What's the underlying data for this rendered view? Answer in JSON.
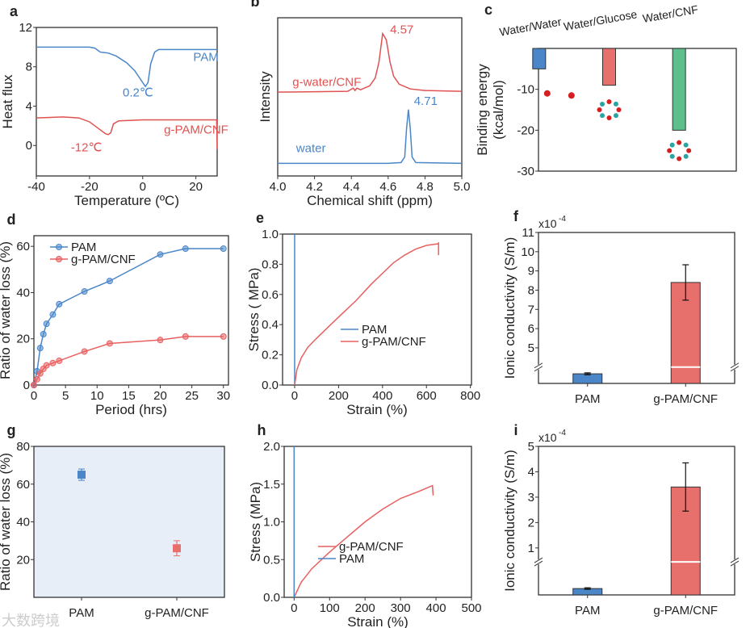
{
  "watermark": "大数跨境",
  "chart_data": [
    {
      "id": "a",
      "letter": "a",
      "type": "line",
      "xlim": [
        -40,
        28
      ],
      "ylim": [
        -3.1,
        12
      ],
      "xticks": [
        "-40",
        "-20",
        "0",
        "20"
      ],
      "yticks": [
        "0",
        "4",
        "8",
        "12"
      ],
      "xlabel": "Temperature (ºC)",
      "ylabel": "Heat flux",
      "series": [
        {
          "name": "PAM",
          "color": "#4a86c8",
          "points": [
            [
              -40,
              10
            ],
            [
              -20,
              10
            ],
            [
              -18,
              9.9
            ],
            [
              -16,
              9.5
            ],
            [
              -13,
              9.4
            ],
            [
              -10,
              9.1
            ],
            [
              -6,
              8.4
            ],
            [
              -3,
              7.6
            ],
            [
              -1,
              6.8
            ],
            [
              1,
              6
            ],
            [
              2,
              6.4
            ],
            [
              3,
              8.3
            ],
            [
              4.5,
              9.5
            ],
            [
              6,
              9.75
            ],
            [
              28,
              9.75
            ]
          ]
        },
        {
          "name": "g-PAM/CNF",
          "color": "#e05252",
          "points": [
            [
              -40,
              2.8
            ],
            [
              -30,
              2.9
            ],
            [
              -24,
              2.8
            ],
            [
              -20,
              2.4
            ],
            [
              -17,
              1.8
            ],
            [
              -14,
              1.2
            ],
            [
              -13,
              1.1
            ],
            [
              -12,
              1.3
            ],
            [
              -11,
              2.2
            ],
            [
              -9,
              2.5
            ],
            [
              0,
              2.6
            ],
            [
              27.8,
              2.6
            ],
            [
              28,
              -0.4
            ]
          ]
        }
      ],
      "annotations": [
        {
          "text": "PAM",
          "x": 19,
          "y": 8.6,
          "color": "#4a86c8"
        },
        {
          "text": "0.2℃",
          "x": -7.5,
          "y": 5,
          "color": "#4a86c8"
        },
        {
          "text": "g-PAM/CNF",
          "x": 8,
          "y": 1.2,
          "color": "#e05252"
        },
        {
          "text": "-12℃",
          "x": -27,
          "y": -0.6,
          "color": "#e05252"
        }
      ]
    },
    {
      "id": "b",
      "letter": "b",
      "type": "line",
      "xlim": [
        4.0,
        5.0
      ],
      "ylim": [
        0,
        1
      ],
      "xticks": [
        "4.0",
        "4.2",
        "4.4",
        "4.6",
        "4.8",
        "5.0"
      ],
      "yticks": [],
      "xlabel": "Chemical shift (ppm)",
      "ylabel": "Intensity",
      "series": [
        {
          "name": "g-water/CNF",
          "color": "#e05252",
          "points": [
            [
              4.0,
              0.53
            ],
            [
              4.38,
              0.535
            ],
            [
              4.41,
              0.555
            ],
            [
              4.42,
              0.54
            ],
            [
              4.43,
              0.555
            ],
            [
              4.45,
              0.545
            ],
            [
              4.5,
              0.57
            ],
            [
              4.53,
              0.62
            ],
            [
              4.55,
              0.72
            ],
            [
              4.57,
              0.9
            ],
            [
              4.59,
              0.86
            ],
            [
              4.61,
              0.72
            ],
            [
              4.63,
              0.63
            ],
            [
              4.66,
              0.58
            ],
            [
              4.72,
              0.55
            ],
            [
              4.8,
              0.54
            ],
            [
              5.0,
              0.535
            ]
          ]
        },
        {
          "name": "water",
          "color": "#4a86c8",
          "points": [
            [
              4.0,
              0.08
            ],
            [
              4.6,
              0.08
            ],
            [
              4.67,
              0.085
            ],
            [
              4.69,
              0.12
            ],
            [
              4.7,
              0.3
            ],
            [
              4.71,
              0.42
            ],
            [
              4.72,
              0.3
            ],
            [
              4.73,
              0.12
            ],
            [
              4.75,
              0.085
            ],
            [
              5.0,
              0.08
            ]
          ]
        }
      ],
      "annotations": [
        {
          "text": "4.57",
          "x": 4.61,
          "y": 0.9,
          "color": "#e05252"
        },
        {
          "text": "g-water/CNF",
          "x": 4.08,
          "y": 0.57,
          "color": "#e05252"
        },
        {
          "text": "4.71",
          "x": 4.74,
          "y": 0.45,
          "color": "#4a86c8"
        },
        {
          "text": "water",
          "x": 4.1,
          "y": 0.15,
          "color": "#4a86c8"
        }
      ]
    },
    {
      "id": "c",
      "letter": "c",
      "type": "bar",
      "xlim": [
        0,
        3
      ],
      "ylim": [
        -30,
        0
      ],
      "xticks": [],
      "yticks": [
        "-10",
        "-20",
        "-30"
      ],
      "xlabel": "",
      "ylabel": "Binding energy",
      "ylabel2": "(kcal/mol)",
      "categories": [
        "Water/Water",
        "Water/Glucose",
        "Water/CNF"
      ],
      "values": [
        -5,
        -9,
        -20
      ],
      "errors": [
        0,
        0,
        0
      ],
      "colors": [
        "#4a86c8",
        "#e8706c",
        "#5cbf8c"
      ]
    },
    {
      "id": "d",
      "letter": "d",
      "type": "line",
      "xlim": [
        0,
        30.8
      ],
      "ylim": [
        0,
        64.6
      ],
      "xticks": [
        "0",
        "5",
        "10",
        "15",
        "20",
        "25",
        "30"
      ],
      "yticks": [
        "0",
        "20",
        "40",
        "60"
      ],
      "xlabel": "Period (hrs)",
      "ylabel": "Ratio of water loss (%)",
      "legend": "top-left",
      "markers": true,
      "series": [
        {
          "name": "PAM",
          "color": "#4a86c8",
          "points": [
            [
              0,
              0
            ],
            [
              0.5,
              6
            ],
            [
              1,
              16
            ],
            [
              1.5,
              22
            ],
            [
              2,
              26.5
            ],
            [
              3,
              30.5
            ],
            [
              4,
              35
            ],
            [
              8,
              40.5
            ],
            [
              12,
              45
            ],
            [
              20,
              56.5
            ],
            [
              24,
              59
            ],
            [
              30,
              59
            ]
          ]
        },
        {
          "name": "g-PAM/CNF",
          "color": "#e86060",
          "points": [
            [
              0,
              0
            ],
            [
              0.5,
              2.5
            ],
            [
              1,
              5
            ],
            [
              1.5,
              7
            ],
            [
              2,
              8.5
            ],
            [
              3,
              9.5
            ],
            [
              4,
              10.5
            ],
            [
              8,
              14.5
            ],
            [
              12,
              18
            ],
            [
              20,
              19.5
            ],
            [
              24,
              21
            ],
            [
              30,
              21
            ]
          ]
        }
      ]
    },
    {
      "id": "e",
      "letter": "e",
      "type": "line",
      "xlim": [
        -55,
        805
      ],
      "ylim": [
        0,
        1.0
      ],
      "xticks": [
        "0",
        "200",
        "400",
        "600",
        "800"
      ],
      "yticks": [
        "0.0",
        "0.2",
        "0.4",
        "0.6",
        "0.8",
        "1.0"
      ],
      "xlabel": "Strain (%)",
      "ylabel": "Stress ( MPa)",
      "legend": "center",
      "series": [
        {
          "name": "PAM",
          "color": "#4a86c8",
          "points": [
            [
              0,
              0
            ],
            [
              0,
              1.0
            ]
          ]
        },
        {
          "name": "g-PAM/CNF",
          "color": "#e86060",
          "points": [
            [
              0,
              0
            ],
            [
              10,
              0.1
            ],
            [
              30,
              0.18
            ],
            [
              60,
              0.25
            ],
            [
              100,
              0.31
            ],
            [
              150,
              0.38
            ],
            [
              200,
              0.45
            ],
            [
              280,
              0.56
            ],
            [
              350,
              0.67
            ],
            [
              400,
              0.74
            ],
            [
              450,
              0.81
            ],
            [
              500,
              0.86
            ],
            [
              550,
              0.9
            ],
            [
              600,
              0.925
            ],
            [
              650,
              0.935
            ],
            [
              655,
              0.94
            ],
            [
              655,
              0.86
            ]
          ]
        }
      ]
    },
    {
      "id": "f",
      "letter": "f",
      "type": "bar",
      "xlim": [
        0,
        2
      ],
      "ylim": [
        3.15,
        11
      ],
      "xticks": [],
      "yticks": [
        "5",
        "6",
        "7",
        "8",
        "9",
        "10",
        "11"
      ],
      "xlabel": "",
      "ylabel": "Ionic conductivity (S/m)",
      "multiplier": "x10",
      "exponent": "-4",
      "axis_break": 4.0,
      "categories": [
        "PAM",
        "g-PAM/CNF"
      ],
      "values": [
        3.65,
        8.4
      ],
      "errors": [
        0.05,
        0.92
      ],
      "colors": [
        "#4a86c8",
        "#e8706c"
      ]
    },
    {
      "id": "g",
      "letter": "g",
      "type": "scatter",
      "xlim": [
        0,
        2
      ],
      "ylim": [
        0,
        80
      ],
      "xticks": [],
      "yticks": [
        "20",
        "40",
        "60",
        "80"
      ],
      "xlabel": "",
      "ylabel": "Ratio of water loss (%)",
      "background": "#e8eef7",
      "categories": [
        "PAM",
        "g-PAM/CNF"
      ],
      "values": [
        65,
        26
      ],
      "errors": [
        3,
        4
      ],
      "colors": [
        "#4a86c8",
        "#e8706c"
      ]
    },
    {
      "id": "h",
      "letter": "h",
      "type": "line",
      "xlim": [
        -28,
        500
      ],
      "ylim": [
        0,
        2.0
      ],
      "xticks": [
        "0",
        "100",
        "200",
        "300",
        "400",
        "500"
      ],
      "yticks": [
        "0.0",
        "0.5",
        "1.0",
        "1.5",
        "2.0"
      ],
      "xlabel": "Strain (%)",
      "ylabel": "Stress (MPa)",
      "legend": "lower-center",
      "series": [
        {
          "name": "g-PAM/CNF",
          "color": "#e86060",
          "points": [
            [
              0,
              0
            ],
            [
              20,
              0.2
            ],
            [
              50,
              0.38
            ],
            [
              100,
              0.6
            ],
            [
              150,
              0.8
            ],
            [
              200,
              1.0
            ],
            [
              250,
              1.17
            ],
            [
              300,
              1.31
            ],
            [
              350,
              1.4
            ],
            [
              390,
              1.48
            ],
            [
              392,
              1.35
            ]
          ]
        },
        {
          "name": "PAM",
          "color": "#4a86c8",
          "points": [
            [
              0,
              0
            ],
            [
              0,
              2.0
            ]
          ]
        }
      ]
    },
    {
      "id": "i",
      "letter": "i",
      "type": "bar",
      "xlim": [
        0,
        2
      ],
      "ylim": [
        -0.85,
        5
      ],
      "xticks": [],
      "yticks": [
        "1",
        "2",
        "3",
        "4",
        "5"
      ],
      "xlabel": "",
      "ylabel": "Ionic conductivity (S/m)",
      "multiplier": "x10",
      "exponent": "-4",
      "axis_break": 0.45,
      "categories": [
        "PAM",
        "g-PAM/CNF"
      ],
      "values": [
        -0.6,
        3.4
      ],
      "errors": [
        0.03,
        0.95
      ],
      "colors": [
        "#4a86c8",
        "#e8706c"
      ]
    }
  ]
}
